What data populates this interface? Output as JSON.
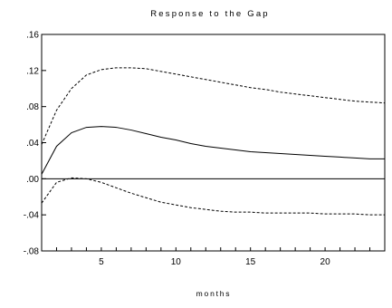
{
  "chart_data": {
    "type": "line",
    "title": "Response to the Gap",
    "xlabel": "months",
    "ylabel": "",
    "xlim": [
      1,
      24
    ],
    "ylim": [
      -0.08,
      0.16
    ],
    "x": [
      1,
      2,
      3,
      4,
      5,
      6,
      7,
      8,
      9,
      10,
      11,
      12,
      13,
      14,
      15,
      16,
      17,
      18,
      19,
      20,
      21,
      22,
      23,
      24
    ],
    "x_ticks": [
      5,
      10,
      15,
      20
    ],
    "x_tick_labels": [
      "5",
      "10",
      "15",
      "20"
    ],
    "y_ticks": [
      -0.08,
      -0.04,
      0.0,
      0.04,
      0.08,
      0.12,
      0.16
    ],
    "y_tick_labels": [
      "-.08",
      "-.04",
      ".00",
      ".04",
      ".08",
      ".12",
      ".16"
    ],
    "zero_line": true,
    "grid": false,
    "series": [
      {
        "style": "solid",
        "values": [
          0.005,
          0.036,
          0.051,
          0.057,
          0.058,
          0.057,
          0.054,
          0.05,
          0.046,
          0.043,
          0.039,
          0.036,
          0.034,
          0.032,
          0.03,
          0.029,
          0.028,
          0.027,
          0.026,
          0.025,
          0.024,
          0.023,
          0.022,
          0.022
        ]
      },
      {
        "style": "dashed",
        "values": [
          0.038,
          0.076,
          0.1,
          0.115,
          0.121,
          0.123,
          0.123,
          0.122,
          0.119,
          0.116,
          0.113,
          0.11,
          0.107,
          0.104,
          0.101,
          0.099,
          0.096,
          0.094,
          0.092,
          0.09,
          0.088,
          0.086,
          0.085,
          0.084
        ]
      },
      {
        "style": "dashed",
        "values": [
          -0.027,
          -0.004,
          0.001,
          0.0,
          -0.004,
          -0.01,
          -0.016,
          -0.021,
          -0.026,
          -0.029,
          -0.032,
          -0.034,
          -0.036,
          -0.037,
          -0.037,
          -0.038,
          -0.038,
          -0.038,
          -0.038,
          -0.039,
          -0.039,
          -0.039,
          -0.04,
          -0.04
        ]
      }
    ]
  }
}
